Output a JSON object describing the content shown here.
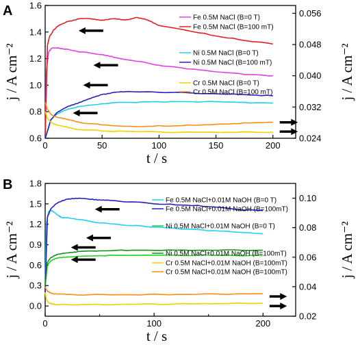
{
  "chart_data": [
    {
      "panel_label": "A",
      "type": "line",
      "xlabel": "t / s",
      "ylabel_left": "j / A cm⁻²",
      "ylabel_right": "j / A cm⁻²",
      "xlim": [
        0,
        220
      ],
      "xticks": [
        "0",
        "50",
        "100",
        "150",
        "200"
      ],
      "ylim_left": [
        0.6,
        1.6
      ],
      "yticks_left": [
        "0.6",
        "0.8",
        "1.0",
        "1.2",
        "1.4",
        "1.6"
      ],
      "ylim_right": [
        0.024,
        0.058
      ],
      "yticks_right": [
        "0.024",
        "0.032",
        "0.040",
        "0.048",
        "0.056"
      ],
      "series": [
        {
          "name": "Fe 0.5M NaCl (B=0 T)",
          "color": "#e040e0",
          "axis": "left",
          "x": [
            0,
            1,
            3,
            6,
            10,
            20,
            30,
            50,
            60,
            80,
            100,
            120,
            150,
            180,
            200
          ],
          "y": [
            0.6,
            1.1,
            1.25,
            1.28,
            1.28,
            1.27,
            1.25,
            1.23,
            1.21,
            1.18,
            1.15,
            1.13,
            1.1,
            1.08,
            1.07
          ]
        },
        {
          "name": "Fe 0.5M NaCl (B=100 mT)",
          "color": "#e02020",
          "axis": "left",
          "x": [
            0,
            2,
            4,
            8,
            12,
            20,
            30,
            40,
            50,
            60,
            70,
            80,
            85,
            90,
            100,
            120,
            150,
            180,
            200
          ],
          "y": [
            0.6,
            1.3,
            1.37,
            1.42,
            1.45,
            1.48,
            1.5,
            1.5,
            1.49,
            1.5,
            1.49,
            1.51,
            1.5,
            1.49,
            1.45,
            1.42,
            1.37,
            1.33,
            1.31
          ]
        },
        {
          "name": "Ni 0.5M NaCl (B=0 T)",
          "color": "#20d0e0",
          "axis": "left",
          "x": [
            0,
            5,
            10,
            20,
            30,
            50,
            70,
            100,
            130,
            150,
            170,
            200
          ],
          "y": [
            0.6,
            0.74,
            0.78,
            0.82,
            0.84,
            0.86,
            0.87,
            0.875,
            0.875,
            0.875,
            0.87,
            0.865
          ]
        },
        {
          "name": "Ni 0.5M NaCl (B=100 mT)",
          "color": "#2020c0",
          "axis": "left",
          "x": [
            0,
            5,
            10,
            20,
            30,
            40,
            50,
            60,
            70,
            90,
            110,
            130,
            150,
            170,
            200
          ],
          "y": [
            0.6,
            0.74,
            0.79,
            0.84,
            0.87,
            0.9,
            0.93,
            0.945,
            0.95,
            0.95,
            0.945,
            0.94,
            0.935,
            0.93,
            0.92
          ]
        },
        {
          "name": "Cr 0.5M NaCl (B=0 T)",
          "color": "#f0d000",
          "axis": "left",
          "x": [
            0,
            2,
            5,
            10,
            20,
            30,
            50,
            80,
            120,
            160,
            200
          ],
          "y": [
            0.8,
            0.75,
            0.72,
            0.7,
            0.68,
            0.665,
            0.655,
            0.65,
            0.645,
            0.645,
            0.645
          ]
        },
        {
          "name": "Cr 0.5M NaCl (B=100 mT)",
          "color": "#ff8c10",
          "axis": "left",
          "x": [
            0,
            2,
            5,
            10,
            20,
            30,
            50,
            70,
            90,
            120,
            150,
            180,
            200
          ],
          "y": [
            0.87,
            0.82,
            0.78,
            0.76,
            0.74,
            0.72,
            0.7,
            0.69,
            0.69,
            0.695,
            0.705,
            0.715,
            0.72
          ]
        }
      ],
      "legend_placement": "right",
      "arrows": [
        {
          "x": [
            45,
            40
          ],
          "y": 1.41,
          "dir": "left"
        },
        {
          "x": [
            58,
            55
          ],
          "y": 1.15,
          "dir": "left"
        },
        {
          "x": [
            49,
            50
          ],
          "y": 1.0,
          "dir": "left"
        },
        {
          "x": [
            40,
            45
          ],
          "y": 0.79,
          "dir": "left"
        },
        {
          "x": [
            206,
            222
          ],
          "y": 0.72,
          "dir": "right"
        },
        {
          "x": [
            206,
            222
          ],
          "y": 0.65,
          "dir": "right"
        }
      ]
    },
    {
      "panel_label": "B",
      "type": "line",
      "xlabel": "t / s",
      "ylabel_left": "j / A cm⁻²",
      "ylabel_right": "j / A cm⁻²",
      "xlim": [
        0,
        230
      ],
      "xticks": [
        "0",
        "100",
        "200"
      ],
      "xticks_minor": [
        50,
        150
      ],
      "ylim_left": [
        -0.15,
        1.8
      ],
      "yticks_left": [
        "0.0",
        "0.3",
        "0.6",
        "0.9",
        "1.2",
        "1.5",
        "1.8"
      ],
      "ylim_right": [
        0.02,
        0.11
      ],
      "yticks_right": [
        "0.02",
        "0.04",
        "0.06",
        "0.08",
        "0.10"
      ],
      "series": [
        {
          "name": "Fe 0.5M NaCl+0.01M NaOH (B=0 T)",
          "color": "#20d0f0",
          "axis": "left",
          "x": [
            0,
            1,
            3,
            5,
            8,
            12,
            15,
            20,
            30,
            50,
            80,
            100,
            130,
            160,
            200
          ],
          "y": [
            0.2,
            1.2,
            1.38,
            1.41,
            1.38,
            1.33,
            1.3,
            1.3,
            1.27,
            1.22,
            1.18,
            1.16,
            1.13,
            1.1,
            1.06
          ]
        },
        {
          "name": "Fe 0.5M NaCl+0.01M NaOH (B=100mT)",
          "color": "#2020c0",
          "axis": "left",
          "x": [
            0,
            2,
            5,
            10,
            15,
            20,
            25,
            30,
            40,
            50,
            60,
            80,
            100,
            130,
            160,
            180,
            200
          ],
          "y": [
            0.2,
            1.3,
            1.42,
            1.5,
            1.54,
            1.57,
            1.58,
            1.58,
            1.57,
            1.56,
            1.55,
            1.53,
            1.5,
            1.48,
            1.45,
            1.41,
            1.4
          ]
        },
        {
          "name": "Ni  0.5M NaCl+0.01M NaOH (B=0 T)",
          "color": "#20d020",
          "axis": "left",
          "x": [
            0,
            2,
            5,
            10,
            20,
            30,
            50,
            80,
            120,
            160,
            200
          ],
          "y": [
            0.3,
            0.6,
            0.66,
            0.7,
            0.72,
            0.73,
            0.74,
            0.745,
            0.745,
            0.745,
            0.74
          ]
        },
        {
          "name": "Ni 0.5M NaCl+0.01M NaOH (B=100mT)",
          "color": "#10901a",
          "axis": "left",
          "x": [
            0,
            2,
            5,
            10,
            20,
            30,
            50,
            80,
            120,
            160,
            200
          ],
          "y": [
            0.3,
            0.64,
            0.71,
            0.75,
            0.78,
            0.8,
            0.81,
            0.82,
            0.82,
            0.82,
            0.82
          ]
        },
        {
          "name": "Cr 0.5M NaCl+0.01M NaOH (B=100mT)",
          "color": "#f0d000",
          "axis": "left",
          "x": [
            0,
            1,
            3,
            6,
            10,
            20,
            40,
            80,
            120,
            160,
            200
          ],
          "y": [
            0.2,
            0.1,
            0.05,
            0.03,
            0.02,
            0.02,
            0.02,
            0.025,
            0.03,
            0.035,
            0.04
          ]
        },
        {
          "name": "Cr 0.5M NaCl+0.01M NaOH (B=100mT)",
          "color": "#ff8c10",
          "axis": "left",
          "x": [
            0,
            2,
            5,
            10,
            20,
            40,
            80,
            120,
            160,
            200
          ],
          "y": [
            0.28,
            0.22,
            0.19,
            0.18,
            0.17,
            0.165,
            0.165,
            0.17,
            0.175,
            0.18
          ]
        }
      ],
      "legend_placement": "right",
      "arrows": [
        {
          "x": [
            62,
            58
          ],
          "y": 1.42,
          "dir": "left"
        },
        {
          "x": [
            54,
            50
          ],
          "y": 1.0,
          "dir": "left"
        },
        {
          "x": [
            40,
            45
          ],
          "y": 0.86,
          "dir": "left"
        },
        {
          "x": [
            40,
            45
          ],
          "y": 0.68,
          "dir": "left"
        },
        {
          "x": [
            206,
            222
          ],
          "y": 0.14,
          "dir": "right"
        },
        {
          "x": [
            206,
            222
          ],
          "y": 0.0,
          "dir": "right"
        }
      ]
    }
  ]
}
